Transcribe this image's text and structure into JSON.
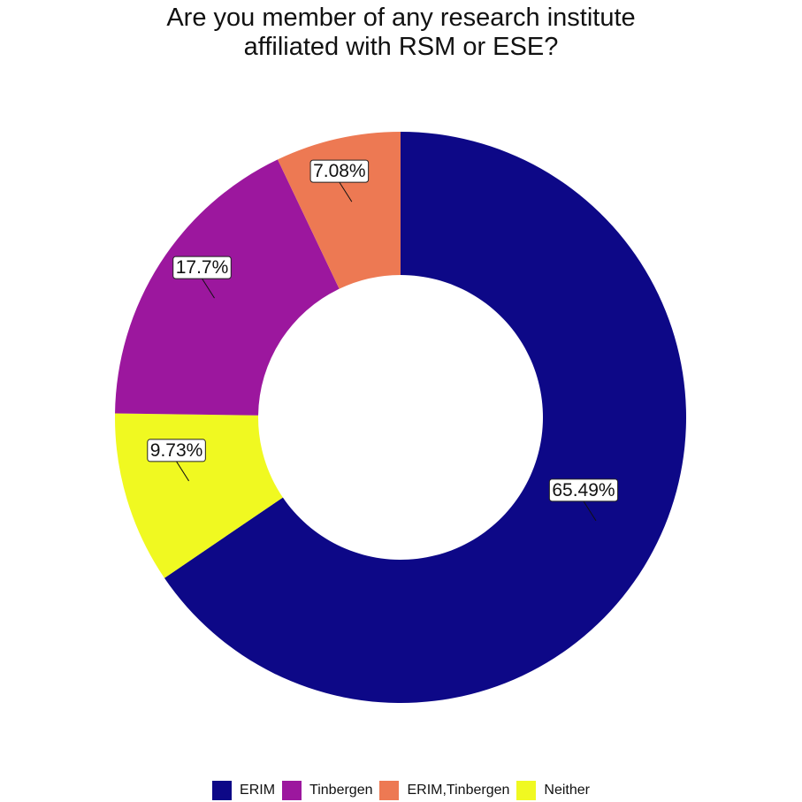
{
  "chart_data": {
    "type": "pie",
    "title_lines": [
      "Are you member of any research institute",
      "affiliated with RSM or ESE?"
    ],
    "slices": [
      {
        "name": "ERIM",
        "value": 65.49,
        "label": "65.49%",
        "color": "#0D0887"
      },
      {
        "name": "Neither",
        "value": 9.73,
        "label": "9.73%",
        "color": "#F0F921"
      },
      {
        "name": "Tinbergen",
        "value": 17.7,
        "label": "17.7%",
        "color": "#9C179E"
      },
      {
        "name": "ERIM,Tinbergen",
        "value": 7.08,
        "label": "7.08%",
        "color": "#ED7953"
      }
    ],
    "legend": {
      "position": "bottom",
      "entries": [
        {
          "name": "ERIM",
          "color": "#0D0887"
        },
        {
          "name": "Tinbergen",
          "color": "#9C179E"
        },
        {
          "name": "ERIM,Tinbergen",
          "color": "#ED7953"
        },
        {
          "name": "Neither",
          "color": "#F0F921"
        }
      ]
    }
  }
}
